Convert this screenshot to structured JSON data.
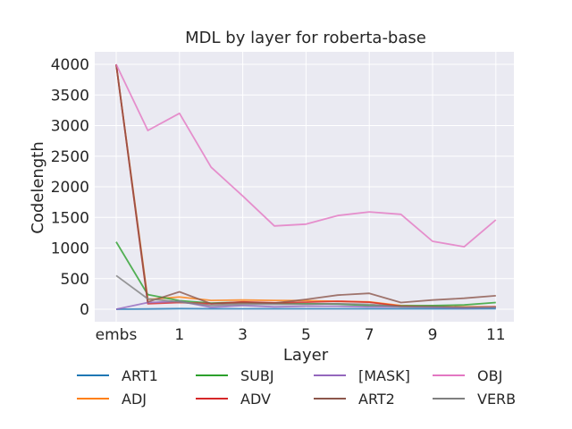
{
  "chart_data": {
    "type": "line",
    "title": "MDL by layer for roberta-base",
    "xlabel": "Layer",
    "ylabel": "Codelength",
    "x": [
      "embs",
      "0",
      "1",
      "2",
      "3",
      "4",
      "5",
      "6",
      "7",
      "8",
      "9",
      "10",
      "11"
    ],
    "xticks_shown": [
      "embs",
      "1",
      "3",
      "5",
      "7",
      "9",
      "11"
    ],
    "yticks": [
      0,
      500,
      1000,
      1500,
      2000,
      2500,
      3000,
      3500,
      4000
    ],
    "ylim": [
      -200,
      4200
    ],
    "grid": true,
    "background": "#eaeaf2",
    "legend_placement": "below",
    "series": [
      {
        "name": "ART1",
        "color": "#1f77b4",
        "values": [
          0,
          5,
          10,
          8,
          8,
          8,
          8,
          8,
          8,
          8,
          8,
          8,
          10
        ]
      },
      {
        "name": "ADJ",
        "color": "#ff7f0e",
        "values": [
          4000,
          160,
          200,
          145,
          150,
          145,
          140,
          130,
          120,
          60,
          50,
          40,
          40
        ]
      },
      {
        "name": "SUBJ",
        "color": "#2ca02c",
        "values": [
          1100,
          240,
          140,
          100,
          115,
          100,
          90,
          85,
          60,
          55,
          60,
          70,
          110
        ]
      },
      {
        "name": "ADV",
        "color": "#d62728",
        "values": [
          4000,
          90,
          110,
          90,
          120,
          105,
          115,
          130,
          115,
          50,
          40,
          30,
          40
        ]
      },
      {
        "name": "[MASK]",
        "color": "#9467bd",
        "values": [
          0,
          110,
          130,
          30,
          60,
          40,
          50,
          50,
          40,
          40,
          30,
          20,
          30
        ]
      },
      {
        "name": "ART2",
        "color": "#8c564b",
        "values": [
          4000,
          120,
          285,
          90,
          100,
          100,
          160,
          230,
          260,
          110,
          150,
          180,
          220
        ]
      },
      {
        "name": "OBJ",
        "color": "#e377c2",
        "values": [
          4000,
          2920,
          3200,
          2320,
          1850,
          1360,
          1390,
          1530,
          1590,
          1550,
          1110,
          1020,
          1460
        ]
      },
      {
        "name": "VERB",
        "color": "#7f7f7f",
        "values": [
          550,
          170,
          120,
          60,
          80,
          80,
          80,
          90,
          80,
          40,
          40,
          30,
          30
        ]
      }
    ]
  }
}
